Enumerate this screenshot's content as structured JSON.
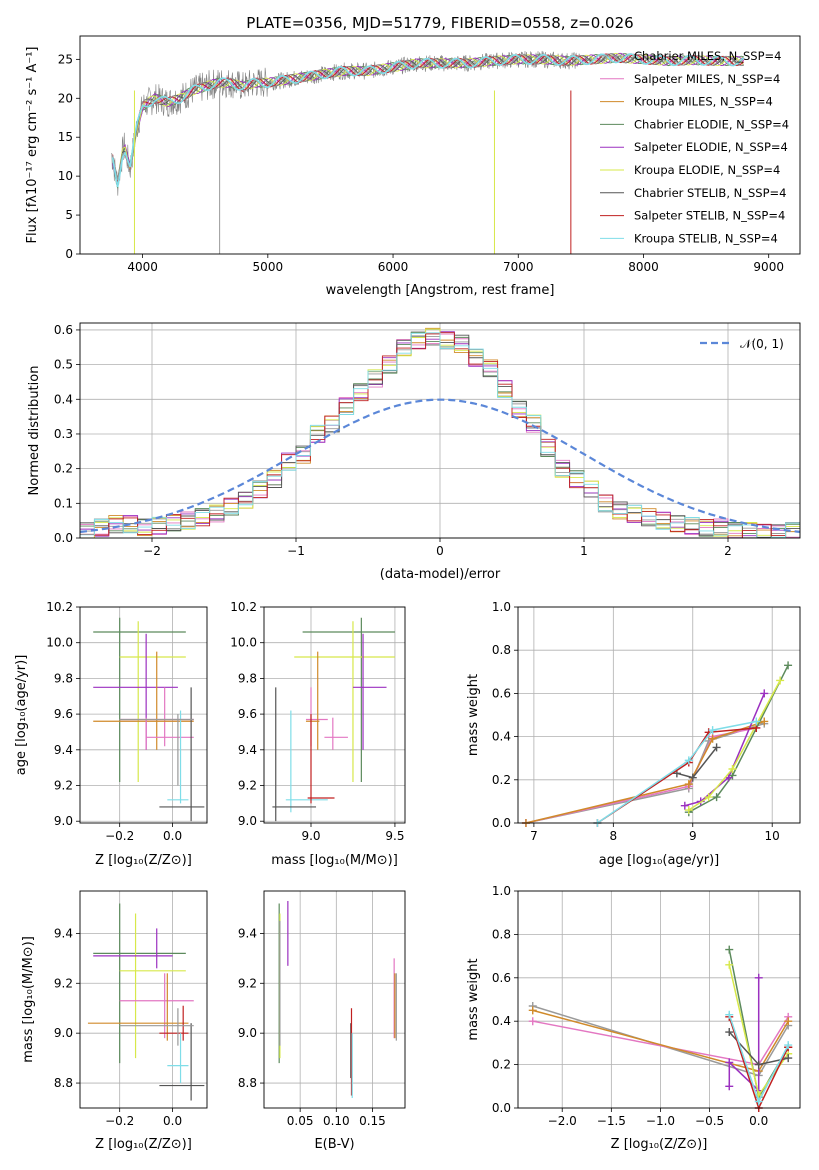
{
  "series_names": [
    "Chabrier MILES",
    "Salpeter MILES",
    "Kroupa MILES",
    "Chabrier ELODIE",
    "Salpeter ELODIE",
    "Kroupa ELODIE",
    "Chabrier STELIB",
    "Salpeter STELIB",
    "Kroupa STELIB"
  ],
  "series_colors": [
    "#9a9a9a",
    "#e377c2",
    "#d08a2a",
    "#5c8a5c",
    "#9b30c0",
    "#d7e84a",
    "#555555",
    "#c02020",
    "#7fdde8"
  ],
  "chart_data": [
    {
      "id": "spectrum",
      "type": "line",
      "title": "PLATE=0356, MJD=51779, FIBERID=0558, z=0.026",
      "xlabel": "wavelength [Angstrom, rest frame]",
      "ylabel": "Flux [fλ10⁻¹⁷ erg cm⁻² s⁻¹ A⁻¹]",
      "xlim": [
        3500,
        9250
      ],
      "ylim": [
        0,
        28
      ],
      "xticks": [
        "4000",
        "5000",
        "6000",
        "7000",
        "8000",
        "9000"
      ],
      "yticks": [
        "0",
        "5",
        "10",
        "15",
        "20",
        "25"
      ],
      "legend_entries": [
        "Chabrier MILES, N_SSP=4",
        "Salpeter MILES, N_SSP=4",
        "Kroupa MILES, N_SSP=4",
        "Chabrier ELODIE, N_SSP=4",
        "Salpeter ELODIE, N_SSP=4",
        "Kroupa ELODIE, N_SSP=4",
        "Chabrier STELIB, N_SSP=4",
        "Salpeter STELIB, N_SSP=4",
        "Kroupa STELIB, N_SSP=4"
      ],
      "legend_position": "right",
      "x": [
        3750,
        3800,
        3850,
        3900,
        3950,
        4000,
        4100,
        4200,
        4300,
        4400,
        4500,
        4600,
        4700,
        4800,
        4900,
        5000,
        5200,
        5400,
        5600,
        5800,
        6000,
        6200,
        6400,
        6600,
        6800,
        7000,
        7200,
        7400,
        7600,
        7800,
        8000,
        8200,
        8400,
        8600,
        8800,
        9000,
        9200
      ],
      "y": [
        13,
        9,
        14,
        11,
        16,
        19,
        20,
        19.5,
        20,
        21,
        21.5,
        22,
        22,
        21.5,
        22,
        22,
        22.5,
        23,
        23.5,
        23.5,
        24,
        24.5,
        24.5,
        24.5,
        24.8,
        25,
        25,
        24.8,
        25,
        25.2,
        25,
        24.8,
        24.9,
        24.8,
        24.8,
        24.7,
        24.6
      ]
    },
    {
      "id": "residuals",
      "type": "line",
      "xlabel": "(data-model)/error",
      "ylabel": "Normed distribution",
      "xlim": [
        -2.5,
        2.5
      ],
      "ylim": [
        0,
        0.62
      ],
      "xticks": [
        "−2",
        "−1",
        "0",
        "1",
        "2"
      ],
      "yticks": [
        "0.0",
        "0.1",
        "0.2",
        "0.3",
        "0.4",
        "0.5",
        "0.6"
      ],
      "legend_entries": [
        "𝒩(0, 1)"
      ],
      "legend_position": "top-right",
      "histogram_bins": [
        -2.5,
        -2.4,
        -2.3,
        -2.2,
        -2.1,
        -2.0,
        -1.9,
        -1.8,
        -1.7,
        -1.6,
        -1.5,
        -1.4,
        -1.3,
        -1.2,
        -1.1,
        -1.0,
        -0.9,
        -0.8,
        -0.7,
        -0.6,
        -0.5,
        -0.4,
        -0.3,
        -0.2,
        -0.1,
        0.0,
        0.1,
        0.2,
        0.3,
        0.4,
        0.5,
        0.6,
        0.7,
        0.8,
        0.9,
        1.0,
        1.1,
        1.2,
        1.3,
        1.4,
        1.5,
        1.6,
        1.7,
        1.8,
        1.9,
        2.0,
        2.1,
        2.2,
        2.3,
        2.4
      ],
      "histogram_values": [
        0.02,
        0.03,
        0.04,
        0.04,
        0.03,
        0.035,
        0.045,
        0.05,
        0.06,
        0.07,
        0.09,
        0.11,
        0.14,
        0.17,
        0.22,
        0.24,
        0.3,
        0.33,
        0.38,
        0.42,
        0.46,
        0.5,
        0.55,
        0.57,
        0.58,
        0.57,
        0.56,
        0.52,
        0.49,
        0.43,
        0.37,
        0.33,
        0.26,
        0.2,
        0.17,
        0.14,
        0.1,
        0.08,
        0.07,
        0.06,
        0.05,
        0.04,
        0.035,
        0.03,
        0.03,
        0.02,
        0.02,
        0.015,
        0.015,
        0.02
      ],
      "gaussian": {
        "mean": 0,
        "sigma": 1
      }
    },
    {
      "id": "age-vs-Z",
      "type": "errorbar",
      "xlabel": "Z [log₁₀(Z/Z⊙)]",
      "ylabel": "age  [log₁₀(age/yr)]",
      "xlim": [
        -0.35,
        0.13
      ],
      "ylim": [
        8.99,
        10.2
      ],
      "xticks": [
        "−0.2",
        "0.0"
      ],
      "yticks": [
        "9.0",
        "9.2",
        "9.4",
        "9.6",
        "9.8",
        "10.0",
        "10.2"
      ],
      "points": [
        {
          "x": -0.2,
          "y": 10.06,
          "xlo": -0.3,
          "xhi": 0.05,
          "ylo": 9.22,
          "yhi": 10.14,
          "series": 3
        },
        {
          "x": -0.13,
          "y": 9.92,
          "xlo": -0.2,
          "xhi": 0.05,
          "ylo": 9.22,
          "yhi": 10.12,
          "series": 5
        },
        {
          "x": -0.1,
          "y": 9.75,
          "xlo": -0.3,
          "xhi": 0.02,
          "ylo": 9.4,
          "yhi": 10.05,
          "series": 4
        },
        {
          "x": -0.03,
          "y": 9.57,
          "xlo": -0.2,
          "xhi": 0.08,
          "ylo": 9.42,
          "yhi": 9.75,
          "series": 1
        },
        {
          "x": -0.06,
          "y": 9.56,
          "xlo": -0.3,
          "xhi": 0.08,
          "ylo": 9.4,
          "yhi": 9.95,
          "series": 2
        },
        {
          "x": -0.1,
          "y": 9.47,
          "xlo": -0.1,
          "xhi": 0.08,
          "ylo": 9.4,
          "yhi": 9.58,
          "series": 1
        },
        {
          "x": 0.03,
          "y": 9.12,
          "xlo": -0.02,
          "xhi": 0.06,
          "ylo": 9.1,
          "yhi": 9.62,
          "series": 8
        },
        {
          "x": 0.07,
          "y": 9.08,
          "xlo": -0.05,
          "xhi": 0.12,
          "ylo": 9.0,
          "yhi": 9.75,
          "series": 6
        },
        {
          "x": 0.02,
          "y": 9.57,
          "xlo": -0.2,
          "xhi": 0.08,
          "ylo": 9.2,
          "yhi": 9.6,
          "series": 0
        }
      ]
    },
    {
      "id": "age-vs-mass",
      "type": "errorbar",
      "xlabel": "mass [log₁₀(M/M⊙)]",
      "ylabel": "",
      "xlim": [
        8.72,
        9.56
      ],
      "ylim": [
        8.99,
        10.2
      ],
      "xticks": [
        "9.0",
        "9.5"
      ],
      "yticks": [
        "9.0",
        "9.2",
        "9.4",
        "9.6",
        "9.8",
        "10.0",
        "10.2"
      ],
      "points": [
        {
          "x": 9.3,
          "y": 10.06,
          "xlo": 8.95,
          "xhi": 9.5,
          "ylo": 9.22,
          "yhi": 10.14,
          "series": 3
        },
        {
          "x": 9.25,
          "y": 9.92,
          "xlo": 8.9,
          "xhi": 9.5,
          "ylo": 9.22,
          "yhi": 10.12,
          "series": 5
        },
        {
          "x": 9.31,
          "y": 9.75,
          "xlo": 9.25,
          "xhi": 9.45,
          "ylo": 9.4,
          "yhi": 10.05,
          "series": 4
        },
        {
          "x": 9.0,
          "y": 9.57,
          "xlo": 8.97,
          "xhi": 9.1,
          "ylo": 9.42,
          "yhi": 9.75,
          "series": 1
        },
        {
          "x": 9.04,
          "y": 9.56,
          "xlo": 8.97,
          "xhi": 9.05,
          "ylo": 9.4,
          "yhi": 9.95,
          "series": 2
        },
        {
          "x": 9.13,
          "y": 9.47,
          "xlo": 9.08,
          "xhi": 9.22,
          "ylo": 9.4,
          "yhi": 9.58,
          "series": 1
        },
        {
          "x": 8.88,
          "y": 9.12,
          "xlo": 8.85,
          "xhi": 9.1,
          "ylo": 9.05,
          "yhi": 9.62,
          "series": 8
        },
        {
          "x": 8.79,
          "y": 9.08,
          "xlo": 8.77,
          "xhi": 9.03,
          "ylo": 9.0,
          "yhi": 9.75,
          "series": 6
        },
        {
          "x": 9.0,
          "y": 9.13,
          "xlo": 8.98,
          "xhi": 9.14,
          "ylo": 9.1,
          "yhi": 9.6,
          "series": 7
        }
      ]
    },
    {
      "id": "massweight-vs-age",
      "type": "line",
      "xlabel": "age  [log₁₀(age/yr)]",
      "ylabel": "mass weight",
      "xlim": [
        6.8,
        10.35
      ],
      "ylim": [
        0,
        1
      ],
      "xticks": [
        "7",
        "8",
        "9",
        "10"
      ],
      "yticks": [
        "0.0",
        "0.2",
        "0.4",
        "0.6",
        "0.8",
        "1.0"
      ],
      "series": [
        {
          "series": 0,
          "x": [
            6.9,
            8.95,
            9.2,
            9.9
          ],
          "y": [
            0.0,
            0.16,
            0.38,
            0.46
          ]
        },
        {
          "series": 1,
          "x": [
            6.9,
            8.95,
            9.25,
            9.8
          ],
          "y": [
            0.0,
            0.17,
            0.4,
            0.44
          ]
        },
        {
          "series": 2,
          "x": [
            6.9,
            8.95,
            9.25,
            9.9
          ],
          "y": [
            0.0,
            0.18,
            0.39,
            0.47
          ]
        },
        {
          "series": 3,
          "x": [
            8.95,
            9.3,
            9.5,
            10.2
          ],
          "y": [
            0.05,
            0.12,
            0.22,
            0.73
          ]
        },
        {
          "series": 4,
          "x": [
            8.9,
            9.1,
            9.45,
            9.9
          ],
          "y": [
            0.08,
            0.1,
            0.21,
            0.6
          ]
        },
        {
          "series": 5,
          "x": [
            8.95,
            9.2,
            9.5,
            10.1
          ],
          "y": [
            0.06,
            0.12,
            0.25,
            0.66
          ]
        },
        {
          "series": 6,
          "x": [
            8.8,
            9.0,
            9.3
          ],
          "y": [
            0.23,
            0.21,
            0.35
          ]
        },
        {
          "series": 7,
          "x": [
            7.8,
            8.95,
            9.2,
            9.8
          ],
          "y": [
            0.0,
            0.28,
            0.42,
            0.44
          ]
        },
        {
          "series": 8,
          "x": [
            7.8,
            8.95,
            9.25,
            9.8
          ],
          "y": [
            0.0,
            0.29,
            0.43,
            0.47
          ]
        }
      ]
    },
    {
      "id": "mass-vs-Z",
      "type": "errorbar",
      "xlabel": "Z [log₁₀(Z/Z⊙)]",
      "ylabel": "mass [log₁₀(M/M⊙)]",
      "xlim": [
        -0.35,
        0.13
      ],
      "ylim": [
        8.7,
        9.57
      ],
      "xticks": [
        "−0.2",
        "0.0"
      ],
      "yticks": [
        "8.8",
        "9.0",
        "9.2",
        "9.4"
      ],
      "points": [
        {
          "x": -0.2,
          "y": 9.32,
          "xlo": -0.3,
          "xhi": 0.05,
          "ylo": 8.88,
          "yhi": 9.52,
          "series": 3
        },
        {
          "x": -0.14,
          "y": 9.25,
          "xlo": -0.2,
          "xhi": 0.05,
          "ylo": 8.9,
          "yhi": 9.48,
          "series": 5
        },
        {
          "x": -0.06,
          "y": 9.31,
          "xlo": -0.3,
          "xhi": 0.0,
          "ylo": 9.26,
          "yhi": 9.42,
          "series": 4
        },
        {
          "x": -0.03,
          "y": 9.13,
          "xlo": -0.2,
          "xhi": 0.08,
          "ylo": 8.98,
          "yhi": 9.24,
          "series": 1
        },
        {
          "x": -0.02,
          "y": 9.04,
          "xlo": -0.32,
          "xhi": 0.06,
          "ylo": 8.97,
          "yhi": 9.24,
          "series": 2
        },
        {
          "x": 0.04,
          "y": 9.0,
          "xlo": -0.05,
          "xhi": 0.06,
          "ylo": 8.97,
          "yhi": 9.11,
          "series": 7
        },
        {
          "x": 0.03,
          "y": 8.87,
          "xlo": -0.02,
          "xhi": 0.06,
          "ylo": 8.8,
          "yhi": 9.0,
          "series": 8
        },
        {
          "x": 0.07,
          "y": 8.79,
          "xlo": -0.05,
          "xhi": 0.12,
          "ylo": 8.73,
          "yhi": 9.04,
          "series": 6
        },
        {
          "x": 0.02,
          "y": 9.03,
          "xlo": -0.2,
          "xhi": 0.08,
          "ylo": 8.95,
          "yhi": 9.1,
          "series": 0
        }
      ]
    },
    {
      "id": "mass-vs-EBV",
      "type": "errorbar",
      "xlabel": "E(B-V)",
      "ylabel": "",
      "xlim": [
        0.0,
        0.195
      ],
      "ylim": [
        8.7,
        9.57
      ],
      "xticks": [
        "0.05",
        "0.10",
        "0.15"
      ],
      "yticks": [
        "8.8",
        "9.0",
        "9.2",
        "9.4"
      ],
      "points": [
        {
          "x": 0.021,
          "y": 9.32,
          "ylo": 8.88,
          "yhi": 9.52,
          "series": 3
        },
        {
          "x": 0.022,
          "y": 9.25,
          "ylo": 8.9,
          "yhi": 9.48,
          "series": 5
        },
        {
          "x": 0.033,
          "y": 9.4,
          "ylo": 9.27,
          "yhi": 9.53,
          "series": 4
        },
        {
          "x": 0.022,
          "y": 9.2,
          "ylo": 8.95,
          "yhi": 9.45,
          "series": 0
        },
        {
          "x": 0.12,
          "y": 8.98,
          "ylo": 8.82,
          "yhi": 9.04,
          "series": 6
        },
        {
          "x": 0.121,
          "y": 9.0,
          "ylo": 8.75,
          "yhi": 9.1,
          "series": 7
        },
        {
          "x": 0.122,
          "y": 8.9,
          "ylo": 8.74,
          "yhi": 9.0,
          "series": 8
        },
        {
          "x": 0.18,
          "y": 9.1,
          "ylo": 8.98,
          "yhi": 9.3,
          "series": 1
        },
        {
          "x": 0.181,
          "y": 9.1,
          "ylo": 8.98,
          "yhi": 9.24,
          "series": 2
        },
        {
          "x": 0.183,
          "y": 9.1,
          "ylo": 8.97,
          "yhi": 9.24,
          "series": 0
        }
      ]
    },
    {
      "id": "massweight-vs-Z",
      "type": "line",
      "xlabel": "Z [log₁₀(Z/Z⊙)]",
      "ylabel": "mass weight",
      "xlim": [
        -2.45,
        0.42
      ],
      "ylim": [
        0,
        1
      ],
      "xticks": [
        "−2.0",
        "−1.5",
        "−1.0",
        "−0.5",
        "0.0"
      ],
      "yticks": [
        "0.0",
        "0.2",
        "0.4",
        "0.6",
        "0.8",
        "1.0"
      ],
      "series": [
        {
          "series": 0,
          "x": [
            -2.3,
            0.0,
            0.3
          ],
          "y": [
            0.47,
            0.15,
            0.38
          ]
        },
        {
          "series": 1,
          "x": [
            -2.3,
            0.0,
            0.3
          ],
          "y": [
            0.4,
            0.2,
            0.42
          ]
        },
        {
          "series": 2,
          "x": [
            -2.3,
            0.0,
            0.3
          ],
          "y": [
            0.45,
            0.17,
            0.4
          ]
        },
        {
          "series": 3,
          "x": [
            -0.3,
            0.0,
            0.3
          ],
          "y": [
            0.73,
            0.05,
            0.28
          ]
        },
        {
          "series": 4,
          "x": [
            -0.3,
            -0.3,
            0.0,
            0.0
          ],
          "y": [
            0.1,
            0.21,
            0.08,
            0.6
          ]
        },
        {
          "series": 5,
          "x": [
            -0.3,
            0.0,
            0.3
          ],
          "y": [
            0.66,
            0.06,
            0.25
          ]
        },
        {
          "series": 6,
          "x": [
            -0.3,
            0.0,
            0.3
          ],
          "y": [
            0.35,
            0.2,
            0.23
          ]
        },
        {
          "series": 7,
          "x": [
            -0.3,
            0.0,
            0.3
          ],
          "y": [
            0.42,
            0.0,
            0.28
          ]
        },
        {
          "series": 8,
          "x": [
            -0.3,
            0.0,
            0.3
          ],
          "y": [
            0.43,
            0.03,
            0.29
          ]
        }
      ]
    }
  ]
}
